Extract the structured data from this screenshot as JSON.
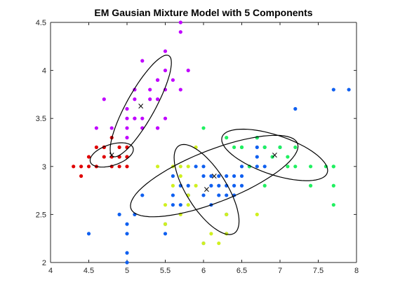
{
  "chart_data": {
    "type": "scatter",
    "title": "EM Gausian Mixture Model with 5 Components",
    "xlabel": "",
    "ylabel": "",
    "xlim": [
      4,
      8
    ],
    "ylim": [
      2,
      4.5
    ],
    "x_ticks": [
      4,
      4.5,
      5,
      5.5,
      6,
      6.5,
      7,
      7.5,
      8
    ],
    "y_ticks": [
      2,
      2.5,
      3,
      3.5,
      4,
      4.5
    ],
    "x_tick_labels": [
      "4",
      "4.5",
      "5",
      "5.5",
      "6",
      "6.5",
      "7",
      "7.5",
      "8"
    ],
    "y_tick_labels": [
      "2",
      "2.5",
      "3",
      "3.5",
      "4",
      "4.5"
    ],
    "grid": false,
    "legend": "none",
    "axis_color": "#262626",
    "series": [
      {
        "color": "#e00000",
        "points": [
          [
            4.3,
            3.0
          ],
          [
            4.4,
            3.0
          ],
          [
            4.4,
            2.9
          ],
          [
            4.5,
            3.0
          ],
          [
            4.5,
            3.1
          ],
          [
            4.6,
            3.2
          ],
          [
            4.6,
            3.0
          ],
          [
            4.7,
            3.2
          ],
          [
            4.7,
            3.2
          ],
          [
            4.7,
            3.1
          ],
          [
            4.8,
            3.1
          ],
          [
            4.8,
            3.0
          ],
          [
            4.8,
            3.3
          ],
          [
            4.9,
            3.1
          ],
          [
            4.9,
            3.1
          ],
          [
            4.9,
            3.0
          ],
          [
            4.9,
            3.2
          ],
          [
            5.0,
            3.0
          ],
          [
            5.0,
            3.2
          ],
          [
            5.0,
            3.1
          ],
          [
            5.0,
            3.1
          ],
          [
            5.0,
            3.2
          ]
        ]
      },
      {
        "color": "#c000ff",
        "points": [
          [
            4.6,
            3.4
          ],
          [
            4.7,
            3.7
          ],
          [
            4.8,
            3.4
          ],
          [
            5.0,
            3.3
          ],
          [
            5.0,
            3.4
          ],
          [
            5.0,
            3.5
          ],
          [
            5.0,
            3.6
          ],
          [
            5.1,
            3.5
          ],
          [
            5.1,
            3.8
          ],
          [
            5.1,
            3.8
          ],
          [
            5.1,
            3.7
          ],
          [
            5.1,
            3.5
          ],
          [
            5.2,
            3.4
          ],
          [
            5.2,
            3.5
          ],
          [
            5.2,
            3.4
          ],
          [
            5.3,
            3.7
          ],
          [
            5.3,
            3.8
          ],
          [
            5.4,
            3.9
          ],
          [
            5.4,
            3.4
          ],
          [
            5.4,
            3.7
          ],
          [
            5.4,
            3.9
          ],
          [
            5.4,
            3.4
          ],
          [
            5.5,
            3.5
          ],
          [
            5.5,
            4.2
          ],
          [
            5.5,
            4.0
          ],
          [
            5.5,
            3.8
          ],
          [
            5.6,
            3.9
          ],
          [
            5.7,
            3.8
          ],
          [
            5.7,
            4.4
          ],
          [
            5.8,
            4.0
          ],
          [
            5.2,
            4.1
          ],
          [
            5.7,
            4.5
          ]
        ]
      },
      {
        "color": "#1060f0",
        "points": [
          [
            4.5,
            2.3
          ],
          [
            4.9,
            2.5
          ],
          [
            5.0,
            2.3
          ],
          [
            5.0,
            2.4
          ],
          [
            5.0,
            2.1
          ],
          [
            5.0,
            2.0
          ],
          [
            5.1,
            2.5
          ],
          [
            5.2,
            2.7
          ],
          [
            5.5,
            2.3
          ],
          [
            5.5,
            2.4
          ],
          [
            5.6,
            2.7
          ],
          [
            5.6,
            2.9
          ],
          [
            5.6,
            2.6
          ],
          [
            5.7,
            2.8
          ],
          [
            5.7,
            2.6
          ],
          [
            5.8,
            2.7
          ],
          [
            5.8,
            2.7
          ],
          [
            5.8,
            2.8
          ],
          [
            5.9,
            3.0
          ],
          [
            6.0,
            2.2
          ],
          [
            6.0,
            2.7
          ],
          [
            6.0,
            3.0
          ],
          [
            6.0,
            2.9
          ],
          [
            6.1,
            2.6
          ],
          [
            6.1,
            2.8
          ],
          [
            6.1,
            2.9
          ],
          [
            6.2,
            2.7
          ],
          [
            6.2,
            2.8
          ],
          [
            6.2,
            2.9
          ],
          [
            6.3,
            2.3
          ],
          [
            6.3,
            2.5
          ],
          [
            6.3,
            2.7
          ],
          [
            6.3,
            2.8
          ],
          [
            6.3,
            2.9
          ],
          [
            6.4,
            2.7
          ],
          [
            6.4,
            2.8
          ],
          [
            6.4,
            2.9
          ],
          [
            6.5,
            2.8
          ],
          [
            6.5,
            2.9
          ],
          [
            6.5,
            3.0
          ],
          [
            6.6,
            3.0
          ],
          [
            6.7,
            3.0
          ],
          [
            6.7,
            3.1
          ],
          [
            6.7,
            3.2
          ],
          [
            6.7,
            3.3
          ],
          [
            6.8,
            3.0
          ],
          [
            6.8,
            3.2
          ],
          [
            6.9,
            3.1
          ],
          [
            7.0,
            3.2
          ],
          [
            7.2,
            3.6
          ],
          [
            7.7,
            3.8
          ],
          [
            7.9,
            3.8
          ]
        ]
      },
      {
        "color": "#d0f020",
        "points": [
          [
            5.4,
            3.0
          ],
          [
            5.5,
            2.6
          ],
          [
            5.5,
            2.4
          ],
          [
            5.6,
            3.0
          ],
          [
            5.6,
            2.8
          ],
          [
            5.7,
            2.9
          ],
          [
            5.7,
            3.0
          ],
          [
            5.7,
            2.5
          ],
          [
            5.8,
            2.7
          ],
          [
            5.8,
            2.6
          ],
          [
            5.8,
            3.0
          ],
          [
            5.9,
            2.8
          ],
          [
            5.9,
            3.2
          ],
          [
            6.0,
            2.2
          ],
          [
            6.1,
            2.3
          ],
          [
            6.2,
            2.2
          ],
          [
            6.3,
            2.3
          ],
          [
            6.3,
            2.5
          ],
          [
            6.7,
            2.5
          ]
        ]
      },
      {
        "color": "#20f060",
        "points": [
          [
            6.0,
            3.4
          ],
          [
            6.3,
            3.3
          ],
          [
            6.4,
            3.2
          ],
          [
            6.5,
            3.2
          ],
          [
            6.5,
            3.2
          ],
          [
            6.6,
            3.0
          ],
          [
            6.7,
            3.3
          ],
          [
            6.8,
            3.2
          ],
          [
            6.8,
            2.8
          ],
          [
            6.9,
            3.1
          ],
          [
            7.0,
            3.2
          ],
          [
            7.1,
            3.0
          ],
          [
            7.2,
            3.0
          ],
          [
            7.4,
            2.8
          ],
          [
            7.4,
            3.0
          ],
          [
            7.6,
            3.0
          ],
          [
            7.7,
            3.0
          ],
          [
            7.7,
            2.8
          ],
          [
            7.7,
            2.6
          ],
          [
            7.1,
            3.1
          ],
          [
            7.2,
            3.2
          ],
          [
            7.7,
            3.0
          ]
        ]
      }
    ],
    "components": [
      {
        "mean": [
          4.8,
          3.12
        ],
        "cov": [
          [
            0.02,
            0.004
          ],
          [
            0.004,
            0.004
          ]
        ]
      },
      {
        "mean": [
          5.18,
          3.63
        ],
        "cov": [
          [
            0.04,
            0.045
          ],
          [
            0.045,
            0.07
          ]
        ]
      },
      {
        "mean": [
          6.04,
          2.76
        ],
        "cov": [
          [
            0.045,
            -0.035
          ],
          [
            -0.035,
            0.055
          ]
        ]
      },
      {
        "mean": [
          6.14,
          2.9
        ],
        "cov": [
          [
            0.3,
            0.085
          ],
          [
            0.085,
            0.045
          ]
        ]
      },
      {
        "mean": [
          6.93,
          3.12
        ],
        "cov": [
          [
            0.12,
            -0.028
          ],
          [
            -0.028,
            0.018
          ]
        ]
      }
    ],
    "mean_marker": "×",
    "mean_color": "#000000"
  }
}
